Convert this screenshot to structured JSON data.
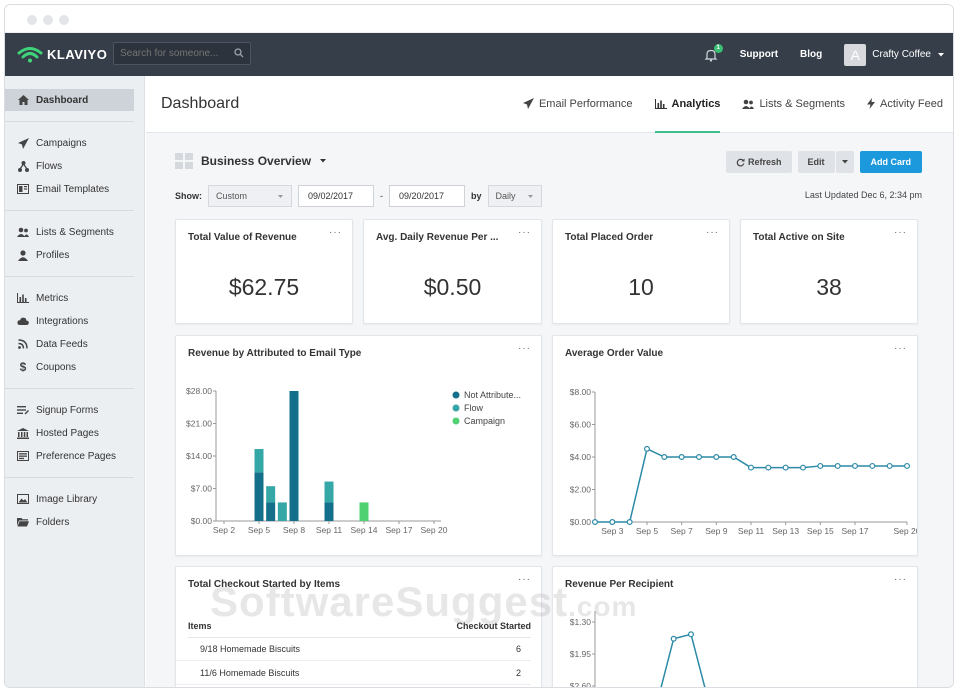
{
  "app": {
    "logo_text": "KLAVIYO",
    "search_placeholder": "Search for someone...",
    "notification_count": "1",
    "support": "Support",
    "blog": "Blog",
    "avatar_letter": "A",
    "account": "Crafty Coffee"
  },
  "sidebar": {
    "items": [
      {
        "label": "Dashboard",
        "icon": "home-icon"
      },
      {
        "label": "Campaigns",
        "icon": "send-icon"
      },
      {
        "label": "Flows",
        "icon": "flow-icon"
      },
      {
        "label": "Email Templates",
        "icon": "template-icon"
      },
      {
        "label": "Lists & Segments",
        "icon": "users-icon"
      },
      {
        "label": "Profiles",
        "icon": "user-icon"
      },
      {
        "label": "Metrics",
        "icon": "bar-chart-icon"
      },
      {
        "label": "Integrations",
        "icon": "cloud-icon"
      },
      {
        "label": "Data Feeds",
        "icon": "rss-icon"
      },
      {
        "label": "Coupons",
        "icon": "dollar-icon"
      },
      {
        "label": "Signup Forms",
        "icon": "form-icon"
      },
      {
        "label": "Hosted Pages",
        "icon": "building-icon"
      },
      {
        "label": "Preference Pages",
        "icon": "prefs-icon"
      },
      {
        "label": "Image Library",
        "icon": "image-icon"
      },
      {
        "label": "Folders",
        "icon": "folder-icon"
      }
    ]
  },
  "header": {
    "title": "Dashboard",
    "tabs": [
      {
        "label": "Email Performance",
        "icon": "send-icon"
      },
      {
        "label": "Analytics",
        "icon": "bar-chart-icon"
      },
      {
        "label": "Lists & Segments",
        "icon": "users-icon"
      },
      {
        "label": "Activity Feed",
        "icon": "bolt-icon"
      }
    ]
  },
  "toolbar": {
    "overview": "Business Overview",
    "refresh": "Refresh",
    "edit": "Edit",
    "add_card": "Add Card",
    "show_label": "Show:",
    "range": "Custom",
    "date_from": "09/02/2017",
    "dash": "-",
    "date_to": "09/20/2017",
    "by_label": "by",
    "interval": "Daily",
    "last_updated": "Last Updated Dec 6, 2:34 pm"
  },
  "stats": [
    {
      "title": "Total Value of Revenue",
      "value": "$62.75"
    },
    {
      "title": "Avg. Daily Revenue Per ...",
      "value": "$0.50"
    },
    {
      "title": "Total Placed Order",
      "value": "10"
    },
    {
      "title": "Total Active on Site",
      "value": "38"
    }
  ],
  "card_more": "···",
  "checkout": {
    "title": "Total Checkout Started by Items",
    "col_items": "Items",
    "col_count": "Checkout Started",
    "rows": [
      {
        "item": "9/18 Homemade Biscuits",
        "count": "6"
      },
      {
        "item": "11/6 Homemade Biscuits",
        "count": "2"
      }
    ]
  },
  "watermark": {
    "main": "SoftwareSuggest",
    "suffix": ".com"
  },
  "colors": {
    "accent": "#1c99dc",
    "tab_underline": "#3ebf8f",
    "not_attributed": "#14708a",
    "flow": "#36a7a7",
    "campaign": "#4fd071",
    "line": "#2c8aa6"
  },
  "chart_data": [
    {
      "type": "bar",
      "title": "Revenue by Attributed to Email Type",
      "x_ticks": [
        "Sep 2",
        "Sep 5",
        "Sep 8",
        "Sep 11",
        "Sep 14",
        "Sep 17",
        "Sep 20"
      ],
      "y_ticks": [
        "$0.00",
        "$7.00",
        "$14.00",
        "$21.00",
        "$28.00"
      ],
      "ylim": [
        0,
        28
      ],
      "stacked": true,
      "categories": [
        "Sep 5",
        "Sep 6",
        "Sep 7",
        "Sep 8",
        "Sep 11",
        "Sep 14"
      ],
      "series": [
        {
          "name": "Not Attribute...",
          "values": [
            10.5,
            4,
            0,
            28,
            4,
            0
          ]
        },
        {
          "name": "Flow",
          "values": [
            5,
            3.5,
            4,
            0,
            4.5,
            0
          ]
        },
        {
          "name": "Campaign",
          "values": [
            0,
            0,
            0,
            0,
            0,
            4
          ]
        }
      ],
      "legend": "right"
    },
    {
      "type": "line",
      "title": "Average Order Value",
      "x_ticks": [
        "Sep 3",
        "Sep 5",
        "Sep 7",
        "Sep 9",
        "Sep 11",
        "Sep 13",
        "Sep 15",
        "Sep 17",
        "Sep 20"
      ],
      "y_ticks": [
        "$0.00",
        "$2.00",
        "$4.00",
        "$6.00",
        "$8.00"
      ],
      "ylim": [
        0,
        8
      ],
      "x": [
        2,
        3,
        4,
        5,
        6,
        7,
        8,
        9,
        10,
        11,
        12,
        13,
        14,
        15,
        16,
        17,
        18,
        19,
        20
      ],
      "values": [
        0,
        0,
        0,
        4.5,
        4.0,
        4.0,
        4.0,
        4.0,
        4.0,
        3.35,
        3.35,
        3.35,
        3.35,
        3.45,
        3.45,
        3.45,
        3.45,
        3.45,
        3.45
      ]
    },
    {
      "type": "line",
      "title": "Revenue Per Recipient",
      "y_ticks": [
        "$1.30",
        "$1.95",
        "$2.60"
      ],
      "ylim": [
        1.0,
        2.8
      ],
      "x": [
        3,
        4,
        5,
        6
      ],
      "values": [
        0.9,
        2.26,
        2.35,
        1.0
      ]
    }
  ]
}
